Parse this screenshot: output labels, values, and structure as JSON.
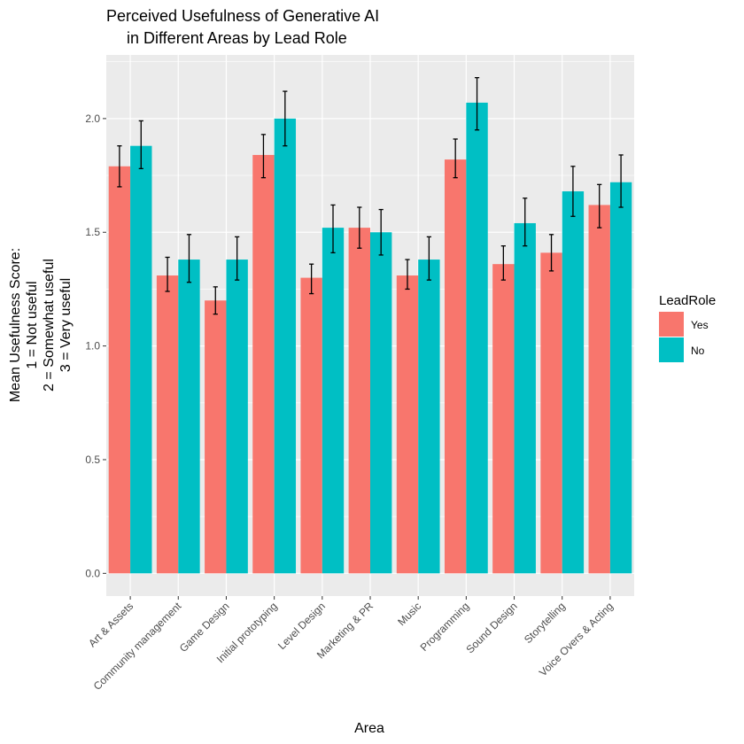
{
  "chart_data": {
    "type": "bar",
    "title": [
      "Perceived Usefulness of Generative AI",
      "in Different Areas by Lead Role"
    ],
    "xlabel": "Area",
    "ylabel": [
      "Mean Usefulness Score:",
      "1 = Not useful",
      "2 = Somewhat useful",
      "3 = Very useful"
    ],
    "ylim": [
      -0.1,
      2.28
    ],
    "yticks": [
      0.0,
      0.5,
      1.0,
      1.5,
      2.0
    ],
    "ytick_labels": [
      "0.0",
      "0.5",
      "1.0",
      "1.5",
      "2.0"
    ],
    "grid": true,
    "legend": {
      "title": "LeadRole",
      "position": "right"
    },
    "categories": [
      "Art & Assets",
      "Community management",
      "Game Design",
      "Initial prototyping",
      "Level Design",
      "Marketing & PR",
      "Music",
      "Programming",
      "Sound Design",
      "Storytelling",
      "Voice Overs & Acting"
    ],
    "series": [
      {
        "name": "Yes",
        "color": "#F8766D",
        "values": [
          1.79,
          1.31,
          1.2,
          1.84,
          1.3,
          1.52,
          1.31,
          1.82,
          1.36,
          1.41,
          1.62
        ],
        "error_low": [
          1.7,
          1.24,
          1.14,
          1.74,
          1.23,
          1.43,
          1.25,
          1.74,
          1.29,
          1.33,
          1.52
        ],
        "error_high": [
          1.88,
          1.39,
          1.26,
          1.93,
          1.36,
          1.61,
          1.38,
          1.91,
          1.44,
          1.49,
          1.71
        ]
      },
      {
        "name": "No",
        "color": "#00BFC4",
        "values": [
          1.88,
          1.38,
          1.38,
          2.0,
          1.52,
          1.5,
          1.38,
          2.07,
          1.54,
          1.68,
          1.72
        ],
        "error_low": [
          1.78,
          1.28,
          1.29,
          1.88,
          1.41,
          1.4,
          1.29,
          1.95,
          1.44,
          1.57,
          1.61
        ],
        "error_high": [
          1.99,
          1.49,
          1.48,
          2.12,
          1.62,
          1.6,
          1.48,
          2.18,
          1.65,
          1.79,
          1.84
        ]
      }
    ]
  }
}
